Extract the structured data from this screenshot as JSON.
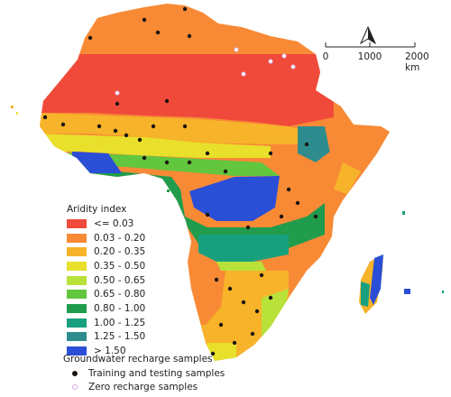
{
  "map": {
    "north_arrow_label": "N"
  },
  "scale_bar": {
    "labels": [
      "0",
      "1000",
      "2000 km"
    ]
  },
  "legend": {
    "title": "Aridity index",
    "classes": [
      {
        "label": "<= 0.03",
        "color": "#f04a3a"
      },
      {
        "label": "0.03 - 0.20",
        "color": "#f88a36"
      },
      {
        "label": "0.20 - 0.35",
        "color": "#f7b32a"
      },
      {
        "label": "0.35 - 0.50",
        "color": "#e8e02a"
      },
      {
        "label": "0.50 - 0.65",
        "color": "#b8e23a"
      },
      {
        "label": "0.65 - 0.80",
        "color": "#62c63e"
      },
      {
        "label": "0.80 - 1.00",
        "color": "#1f9c4c"
      },
      {
        "label": "1.00 - 1.25",
        "color": "#18a07e"
      },
      {
        "label": "1.25 - 1.50",
        "color": "#2f8c8e"
      },
      {
        "label": "> 1.50",
        "color": "#2a4fd6"
      }
    ]
  },
  "samples": {
    "title": "Groundwater recharge samples",
    "training_label": "Training and testing samples",
    "training_color": "#1a1410",
    "zero_label": "Zero recharge samples",
    "zero_color": "#d9a6e6"
  }
}
